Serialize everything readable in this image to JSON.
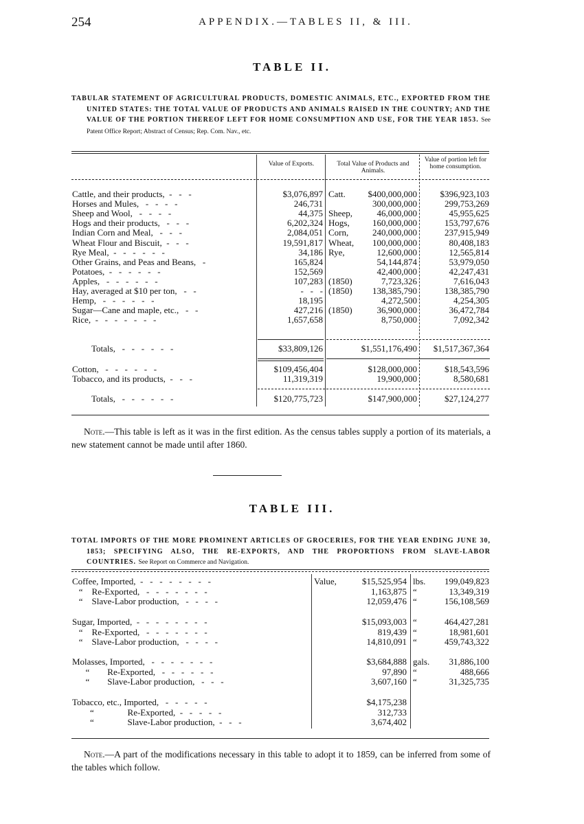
{
  "page_number": "254",
  "running_head": "APPENDIX.—TABLES II, & III.",
  "table2": {
    "title": "TABLE II.",
    "caption": "TABULAR STATEMENT OF AGRICULTURAL PRODUCTS, DOMESTIC ANIMALS, ETC., EXPORTED FROM THE UNITED STATES: THE TOTAL VALUE OF PRODUCTS AND ANIMALS RAISED IN THE COUNTRY; AND THE VALUE OF THE PORTION THEREOF LEFT FOR HOME CONSUMPTION AND USE, FOR THE YEAR 1853.",
    "caption_source": "See Patent Office Report; Abstract of Census; Rep. Com. Nav., etc.",
    "headers": [
      "Value of Exports.",
      "Total Value of Products and Animals.",
      "Value of portion left for home consumption."
    ],
    "rows": [
      {
        "label": "Cattle, and their products,  -   -   -",
        "exports": "$3,076,897",
        "prefix": "Catt.",
        "total": "$400,000,000",
        "home": "$396,923,103"
      },
      {
        "label": "Horses and Mules,   -   -   -   -",
        "exports": "246,731",
        "prefix": "",
        "total": "300,000,000",
        "home": "299,753,269"
      },
      {
        "label": "Sheep and Wool,   -   -   -   -",
        "exports": "44,375",
        "prefix": "Sheep,",
        "total": "46,000,000",
        "home": "45,955,625"
      },
      {
        "label": "Hogs and their products,   -   -   -",
        "exports": "6,202,324",
        "prefix": "Hogs,",
        "total": "160,000,000",
        "home": "153,797,676"
      },
      {
        "label": "Indian Corn and Meal,   -   -   -",
        "exports": "2,084,051",
        "prefix": "Corn,",
        "total": "240,000,000",
        "home": "237,915,949"
      },
      {
        "label": "Wheat Flour and Biscuit,  -   -   -",
        "exports": "19,591,817",
        "prefix": "Wheat,",
        "total": "100,000,000",
        "home": "80,408,183"
      },
      {
        "label": "Rye Meal,  -   -   -   -   -   -",
        "exports": "34,186",
        "prefix": "Rye,",
        "total": "12,600,000",
        "home": "12,565,814"
      },
      {
        "label": "Other Grains, and Peas and Beans,   -",
        "exports": "165,824",
        "prefix": "",
        "total": "54,144,874",
        "home": "53,979,050"
      },
      {
        "label": "Potatoes,  -   -   -   -   -   -",
        "exports": "152,569",
        "prefix": "",
        "total": "42,400,000",
        "home": "42,247,431"
      },
      {
        "label": "Apples,   -   -   -   -   -   -",
        "exports": "107,283",
        "prefix": "(1850)",
        "total": "7,723,326",
        "home": "7,616,043"
      },
      {
        "label": "Hay, averaged at $10 per ton,   -   -",
        "exports": "-   -   -",
        "prefix": "(1850)",
        "total": "138,385,790",
        "home": "138,385,790"
      },
      {
        "label": "Hemp,   -   -   -   -   -   -",
        "exports": "18,195",
        "prefix": "",
        "total": "4,272,500",
        "home": "4,254,305"
      },
      {
        "label": "Sugar—Cane and maple, etc.,   -   -",
        "exports": "427,216",
        "prefix": "(1850)",
        "total": "36,900,000",
        "home": "36,472,784"
      },
      {
        "label": "Rice,  -   -   -   -   -   -   -",
        "exports": "1,657,658",
        "prefix": "",
        "total": "8,750,000",
        "home": "7,092,342"
      }
    ],
    "totals1": {
      "label": "Totals,   -   -   -   -   -   -",
      "exports": "$33,809,126",
      "total": "$1,551,176,490",
      "home": "$1,517,367,364"
    },
    "rows2": [
      {
        "label": "Cotton,   -   -   -   -   -   -",
        "exports": "$109,456,404",
        "total": "$128,000,000",
        "home": "$18,543,596"
      },
      {
        "label": "Tobacco, and its products,  -   -   -",
        "exports": "11,319,319",
        "total": "19,900,000",
        "home": "8,580,681"
      }
    ],
    "totals2": {
      "label": "Totals,   -   -   -   -   -   -",
      "exports": "$120,775,723",
      "total": "$147,900,000",
      "home": "$27,124,277"
    },
    "note_lead": "Note.",
    "note": "—This table is left as it was in the first edition. As the census tables supply a portion of its materials, a new statement cannot be made until after 1860."
  },
  "table3": {
    "title": "TABLE III.",
    "caption": "TOTAL IMPORTS OF THE MORE PROMINENT ARTICLES OF GROCERIES, FOR THE YEAR ENDING JUNE 30, 1853; SPECIFYING ALSO, THE RE-EXPORTS, AND THE PROPORTIONS FROM SLAVE-LABOR COUNTRIES.",
    "caption_source": "See Report on Commerce and Navigation.",
    "groups": [
      {
        "rows": [
          {
            "label": "Coffee, Imported,  -   -   -   -   -   -   -   -",
            "vprefix": "Value,",
            "value": "$15,525,954",
            "unit": "lbs.",
            "qty": "199,049,823"
          },
          {
            "label": "   “    Re-Exported,   -   -   -   -   -   -   -",
            "vprefix": "",
            "value": "1,163,875",
            "unit": "“",
            "qty": "13,349,319"
          },
          {
            "label": "   “    Slave-Labor production,   -   -   -   -",
            "vprefix": "",
            "value": "12,059,476",
            "unit": "“",
            "qty": "156,108,569"
          }
        ]
      },
      {
        "rows": [
          {
            "label": "Sugar, Imported,  -   -   -   -   -   -   -   -",
            "vprefix": "",
            "value": "$15,093,003",
            "unit": "“",
            "qty": "464,427,281"
          },
          {
            "label": "   “    Re-Exported,   -   -   -   -   -   -   -",
            "vprefix": "",
            "value": "819,439",
            "unit": "“",
            "qty": "18,981,601"
          },
          {
            "label": "   “    Slave-Labor production,   -   -   -   -",
            "vprefix": "",
            "value": "14,810,091",
            "unit": "“",
            "qty": "459,743,322"
          }
        ]
      },
      {
        "rows": [
          {
            "label": "Molasses, Imported,   -   -   -   -   -   -   -",
            "vprefix": "",
            "value": "$3,684,888",
            "unit": "gals.",
            "qty": "31,886,100"
          },
          {
            "label": "      “        Re-Exported,   -   -   -   -   -   -",
            "vprefix": "",
            "value": "97,890",
            "unit": "“",
            "qty": "488,666"
          },
          {
            "label": "      “        Slave-Labor production,   -   -   -",
            "vprefix": "",
            "value": "3,607,160",
            "unit": "“",
            "qty": "31,325,735"
          }
        ]
      },
      {
        "rows": [
          {
            "label": "Tobacco, etc., Imported,   -   -   -   -   -",
            "vprefix": "",
            "value": "$4,175,238",
            "unit": "",
            "qty": ""
          },
          {
            "label": "        “               Re-Exported,  -   -   -   -   -",
            "vprefix": "",
            "value": "312,733",
            "unit": "",
            "qty": ""
          },
          {
            "label": "        “               Slave-Labor production,  -   -   -",
            "vprefix": "",
            "value": "3,674,402",
            "unit": "",
            "qty": ""
          }
        ]
      }
    ],
    "note_lead": "Note.",
    "note": "—A part of the modifications necessary in this table to adopt it to 1859, can be inferred from some of the tables which follow."
  }
}
